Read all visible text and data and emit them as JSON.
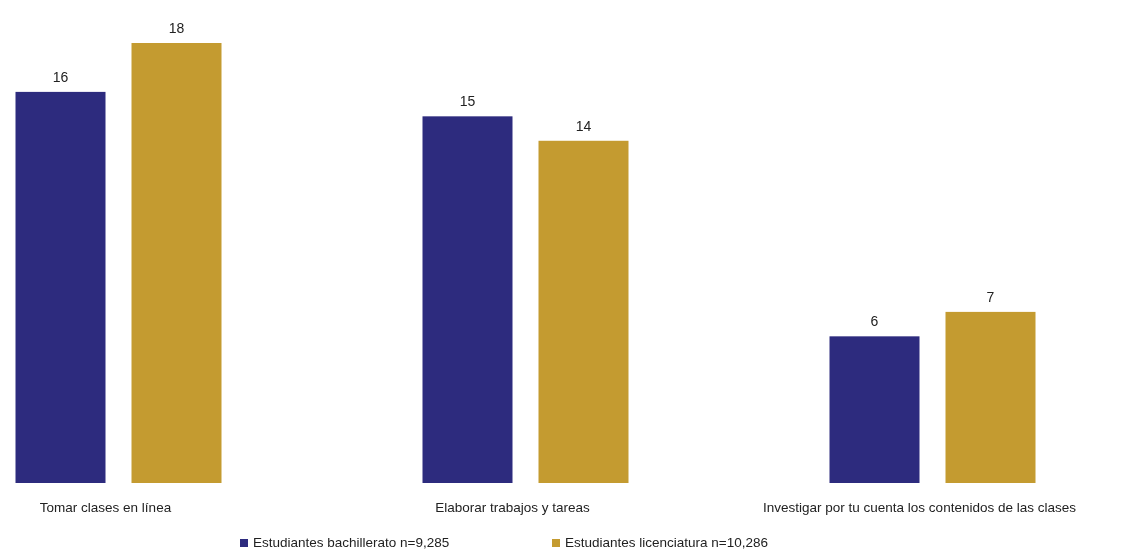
{
  "chart_data": {
    "type": "bar",
    "categories": [
      "Tomar clases en línea",
      "Elaborar trabajos y tareas",
      "Investigar por tu cuenta los contenidos de las clases"
    ],
    "series": [
      {
        "name": "Estudiantes bachillerato n=9,285",
        "color": "#2d2b7e",
        "values": [
          16,
          15,
          6
        ]
      },
      {
        "name": "Estudiantes licenciatura n=10,286",
        "color": "#c49b30",
        "values": [
          18,
          14,
          7
        ]
      }
    ],
    "data_labels": true,
    "legend": "bottom"
  }
}
